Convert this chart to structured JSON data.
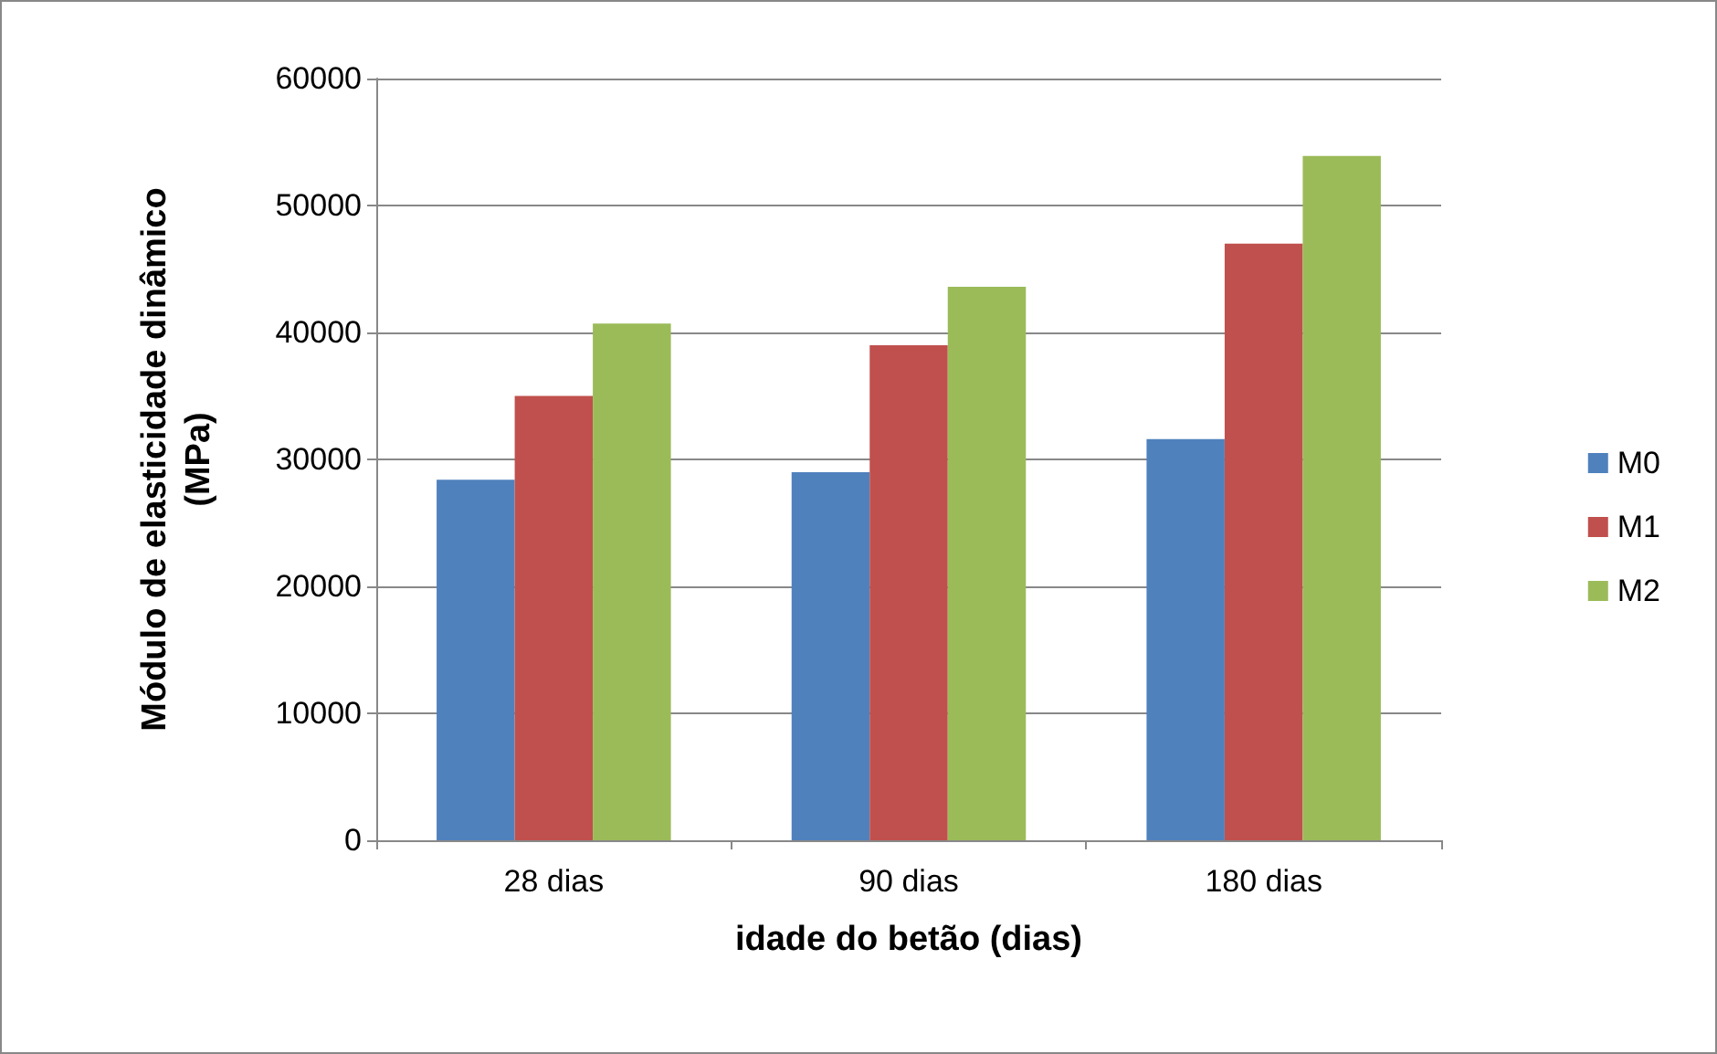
{
  "chart_data": {
    "type": "bar",
    "xlabel": "idade do betão (dias)",
    "ylabel": "Módulo de elasticidade dinâmico\n(MPa)",
    "categories": [
      "28 dias",
      "90 dias",
      "180 dias"
    ],
    "series": [
      {
        "name": "M0",
        "color": "#4f81bd",
        "values": [
          28400,
          29000,
          31600
        ]
      },
      {
        "name": "M1",
        "color": "#c0504d",
        "values": [
          35000,
          39000,
          47000
        ]
      },
      {
        "name": "M2",
        "color": "#9bbb59",
        "values": [
          40700,
          43600,
          53900
        ]
      }
    ],
    "ylim": [
      0,
      60000
    ],
    "yticks": [
      0,
      10000,
      20000,
      30000,
      40000,
      50000,
      60000
    ],
    "grid": "y",
    "legend": "right"
  }
}
